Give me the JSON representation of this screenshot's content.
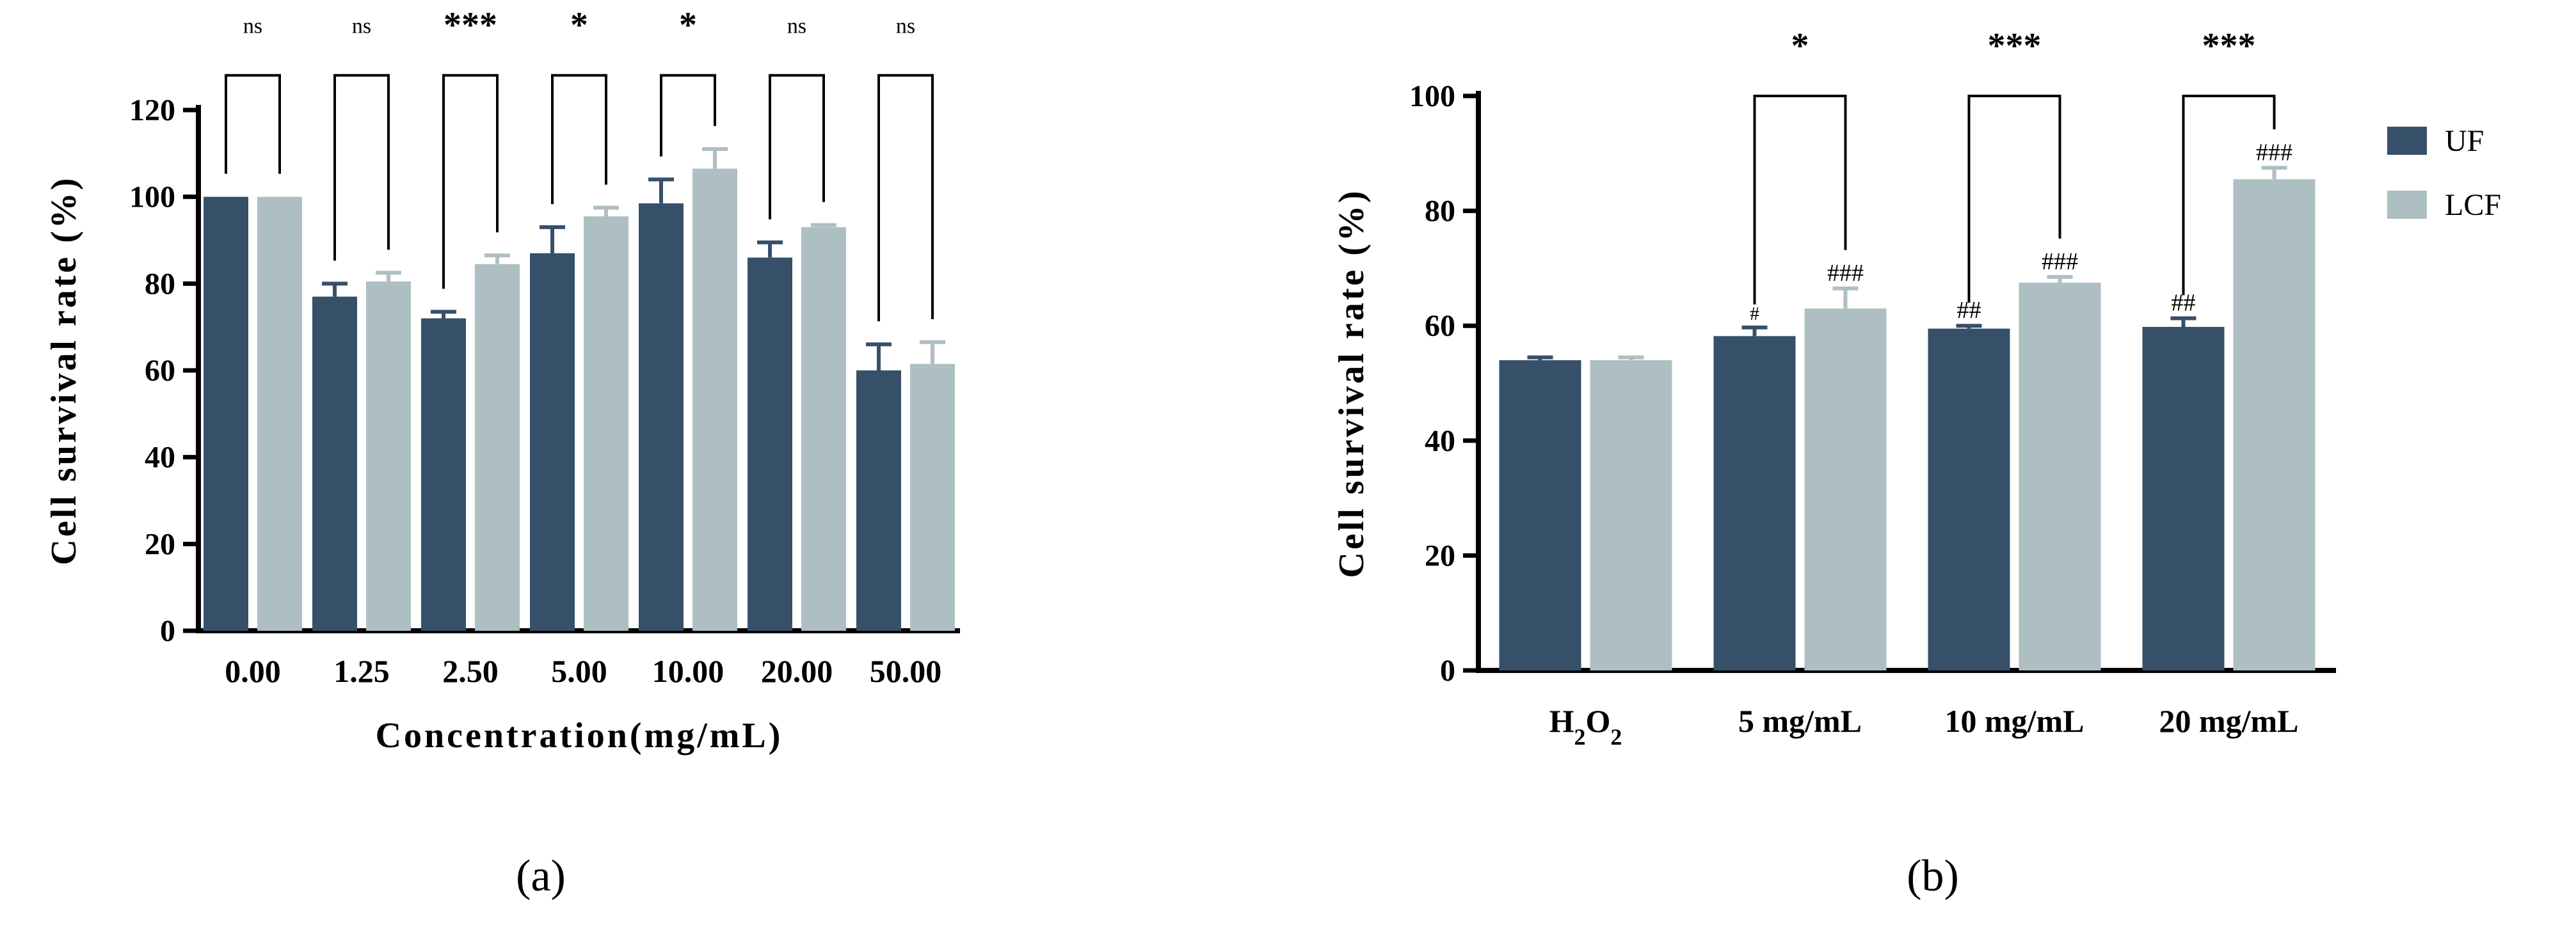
{
  "colors": {
    "UF": "#36506a",
    "LCF": "#adbfc3",
    "axis": "#000000"
  },
  "panel_labels": [
    "(a)",
    "(b)"
  ],
  "chart_data": [
    {
      "type": "bar",
      "panel": "(a)",
      "xlabel": "Concentration(mg/mL)",
      "ylabel": "Cell survival rate (%)",
      "ylim": [
        0,
        120
      ],
      "yticks": [
        0,
        20,
        40,
        60,
        80,
        100,
        120
      ],
      "categories": [
        "0.00",
        "1.25",
        "2.50",
        "5.00",
        "10.00",
        "20.00",
        "50.00"
      ],
      "series": [
        {
          "key": "UF",
          "values": [
            100,
            77,
            72,
            87,
            98.5,
            86,
            60
          ],
          "errors": [
            0,
            3,
            1.5,
            6,
            5.5,
            3.5,
            6
          ]
        },
        {
          "key": "LCF",
          "values": [
            100,
            80.5,
            84.5,
            95.5,
            106.5,
            93,
            61.5
          ],
          "errors": [
            0,
            2,
            2,
            2,
            4.5,
            0.5,
            5
          ]
        }
      ],
      "significance": [
        "ns",
        "ns",
        "***",
        "*",
        "*",
        "ns",
        "ns"
      ],
      "legend": "none",
      "grid": false
    },
    {
      "type": "bar",
      "panel": "(b)",
      "xlabel": "",
      "ylabel": "Cell survival rate (%)",
      "ylim": [
        0,
        100
      ],
      "yticks": [
        0,
        20,
        40,
        60,
        80,
        100
      ],
      "categories": [
        "H2O2",
        "5 mg/mL",
        "10 mg/mL",
        "20 mg/mL"
      ],
      "series": [
        {
          "name": "UF",
          "key": "UF",
          "values": [
            54,
            58.2,
            59.5,
            59.8
          ],
          "errors": [
            0.5,
            1.5,
            0.5,
            1.5
          ],
          "labels": [
            "",
            "#",
            "##",
            "##"
          ]
        },
        {
          "name": "LCF",
          "key": "LCF",
          "values": [
            54,
            63,
            67.5,
            85.5
          ],
          "errors": [
            0.5,
            3.5,
            1,
            2
          ],
          "labels": [
            "",
            "###",
            "###",
            "###"
          ]
        }
      ],
      "significance": [
        "",
        "*",
        "***",
        "***"
      ],
      "legend": "right",
      "grid": false
    }
  ]
}
